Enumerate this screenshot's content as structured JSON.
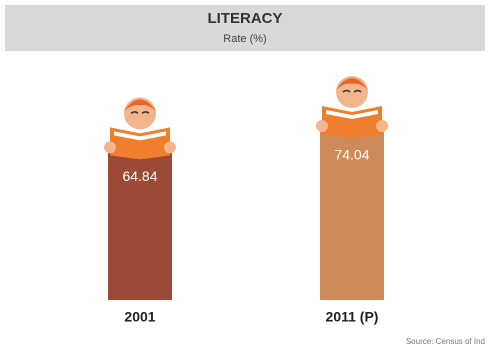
{
  "chart_data": {
    "type": "bar",
    "title": "LITERACY",
    "subtitle": "Rate (%)",
    "categories": [
      "2001",
      "2011 (P)"
    ],
    "values": [
      64.84,
      74.04
    ],
    "colors": [
      "#9b4a36",
      "#cf8a5a"
    ],
    "source": "Source: Census of Ind"
  }
}
